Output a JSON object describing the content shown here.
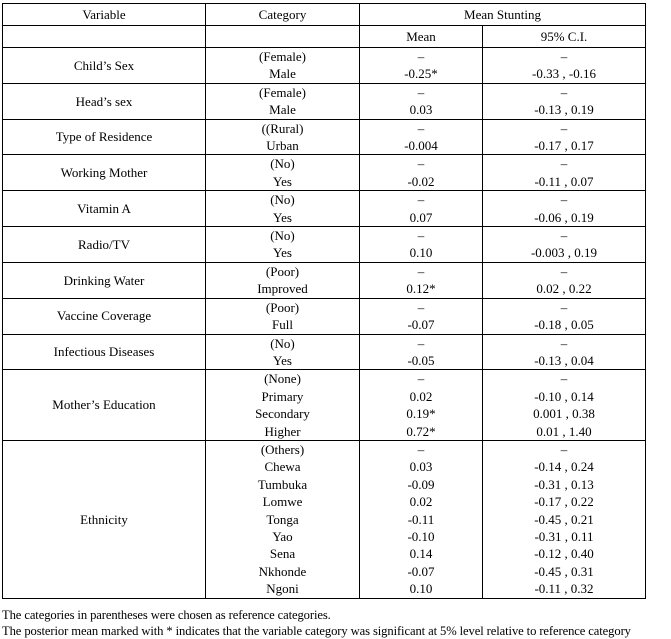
{
  "table": {
    "column_headers": {
      "variable": "Variable",
      "category": "Category",
      "mean_stunting": "Mean Stunting",
      "mean": "Mean",
      "ci": "95% C.I."
    },
    "variables": [
      {
        "name": "Child’s Sex",
        "entries": [
          {
            "category": "(Female)",
            "mean": "–",
            "ci": "–"
          },
          {
            "category": "Male",
            "mean": "-0.25*",
            "ci": "-0.33 , -0.16"
          }
        ]
      },
      {
        "name": "Head’s sex",
        "entries": [
          {
            "category": "(Female)",
            "mean": "–",
            "ci": "–"
          },
          {
            "category": "Male",
            "mean": "0.03",
            "ci": "-0.13 , 0.19"
          }
        ]
      },
      {
        "name": "Type of Residence",
        "entries": [
          {
            "category": "((Rural)",
            "mean": "–",
            "ci": "–"
          },
          {
            "category": "Urban",
            "mean": "-0.004",
            "ci": "-0.17 , 0.17"
          }
        ]
      },
      {
        "name": "Working Mother",
        "entries": [
          {
            "category": "(No)",
            "mean": "–",
            "ci": "–"
          },
          {
            "category": "Yes",
            "mean": "-0.02",
            "ci": "-0.11 , 0.07"
          }
        ]
      },
      {
        "name": "Vitamin A",
        "entries": [
          {
            "category": "(No)",
            "mean": "–",
            "ci": "–"
          },
          {
            "category": "Yes",
            "mean": "0.07",
            "ci": "-0.06 , 0.19"
          }
        ]
      },
      {
        "name": "Radio/TV",
        "entries": [
          {
            "category": "(No)",
            "mean": "–",
            "ci": "–"
          },
          {
            "category": "Yes",
            "mean": "0.10",
            "ci": "-0.003 , 0.19"
          }
        ]
      },
      {
        "name": "Drinking Water",
        "entries": [
          {
            "category": "(Poor)",
            "mean": "–",
            "ci": "–"
          },
          {
            "category": "Improved",
            "mean": "0.12*",
            "ci": "0.02 , 0.22"
          }
        ]
      },
      {
        "name": "Vaccine Coverage",
        "entries": [
          {
            "category": "(Poor)",
            "mean": "–",
            "ci": "–"
          },
          {
            "category": "Full",
            "mean": "-0.07",
            "ci": "-0.18 , 0.05"
          }
        ]
      },
      {
        "name": "Infectious Diseases",
        "entries": [
          {
            "category": "(No)",
            "mean": "–",
            "ci": "–"
          },
          {
            "category": "Yes",
            "mean": "-0.05",
            "ci": "-0.13 , 0.04"
          }
        ]
      },
      {
        "name": "Mother’s Education",
        "entries": [
          {
            "category": "(None)",
            "mean": "–",
            "ci": "–"
          },
          {
            "category": "Primary",
            "mean": "0.02",
            "ci": "-0.10 , 0.14"
          },
          {
            "category": "Secondary",
            "mean": "0.19*",
            "ci": "0.001 , 0.38"
          },
          {
            "category": "Higher",
            "mean": "0.72*",
            "ci": "0.01 , 1.40"
          }
        ]
      },
      {
        "name": "Ethnicity",
        "entries": [
          {
            "category": "(Others)",
            "mean": "–",
            "ci": "–"
          },
          {
            "category": "Chewa",
            "mean": "0.03",
            "ci": "-0.14 , 0.24"
          },
          {
            "category": "Tumbuka",
            "mean": "-0.09",
            "ci": "-0.31 , 0.13"
          },
          {
            "category": "Lomwe",
            "mean": "0.02",
            "ci": "-0.17 , 0.22"
          },
          {
            "category": "Tonga",
            "mean": "-0.11",
            "ci": "-0.45 , 0.21"
          },
          {
            "category": "Yao",
            "mean": "-0.10",
            "ci": "-0.31 , 0.11"
          },
          {
            "category": "Sena",
            "mean": "0.14",
            "ci": "-0.12 , 0.40"
          },
          {
            "category": "Nkhonde",
            "mean": "-0.07",
            "ci": "-0.45 , 0.31"
          },
          {
            "category": "Ngoni",
            "mean": "0.10",
            "ci": "-0.11 , 0.32"
          }
        ]
      }
    ]
  },
  "footnotes": [
    "The categories in parentheses were chosen as reference categories.",
    "The posterior mean marked with * indicates that the variable category was significant at 5% level relative to reference category"
  ]
}
